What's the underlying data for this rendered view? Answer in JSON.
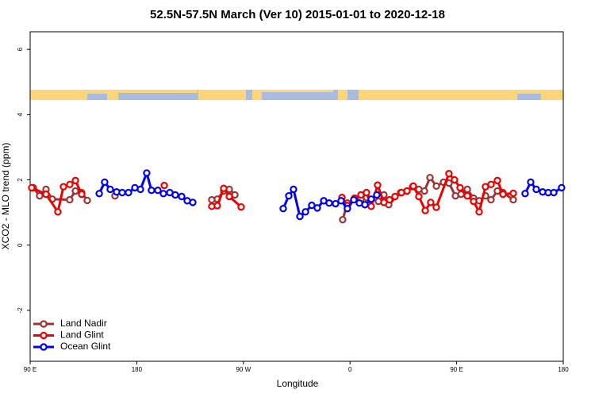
{
  "chart_data": {
    "type": "line",
    "title": "52.5N-57.5N March (Ver 10)   2015-01-01 to 2020-12-18",
    "xlabel": "Longitude",
    "ylabel": "XCO2 - MLO trend (ppm)",
    "xlim": [
      90,
      540
    ],
    "ylim": [
      -3.56,
      6.54
    ],
    "xticks": [
      {
        "value": 90,
        "label": "90 E"
      },
      180,
      {
        "value": 270,
        "label": "90 W"
      },
      {
        "value": 360,
        "label": "0"
      },
      {
        "value": 450,
        "label": "90 E"
      },
      {
        "value": 540,
        "label": "180"
      }
    ],
    "yticks": [
      -2,
      0,
      2,
      4,
      6
    ],
    "legend": "bottom-left",
    "series": [
      {
        "name": "Land Nadir",
        "color": "#9b3535",
        "x": [
          92.7,
          98,
          103.4,
          108.7,
          123.4,
          128.2,
          133.5,
          138.2,
          141,
          161.6,
          200,
          243.3,
          248,
          253.4,
          258.1,
          262.8,
          300,
          353.8,
          357.8,
          369.2,
          373.9,
          384,
          388.6,
          392.7,
          402.7,
          408.1,
          412.8,
          418.1,
          422.8,
          427.5,
          432.9,
          438.9,
          443.6,
          449,
          453.7,
          459,
          464.3,
          469,
          474.4,
          479,
          484.4,
          489.1,
          497.8
        ],
        "values": [
          1.76,
          1.51,
          1.71,
          1.41,
          1.39,
          1.66,
          1.61,
          1.37,
          null,
          1.51,
          null,
          1.39,
          1.41,
          1.66,
          1.71,
          1.54,
          null,
          0.78,
          1.29,
          1.41,
          1.46,
          1.34,
          1.54,
          1.24,
          1.61,
          1.66,
          1.79,
          1.71,
          1.66,
          2.07,
          1.81,
          1.93,
          1.9,
          1.51,
          1.56,
          1.71,
          1.44,
          1.36,
          1.51,
          1.39,
          1.66,
          1.61,
          1.39
        ]
      },
      {
        "name": "Land Glint",
        "color": "#ee0000",
        "x": [
          91.3,
          103.4,
          113.4,
          118.1,
          123.5,
          128.2,
          133.5,
          170,
          203.2,
          230,
          243.3,
          248,
          253.4,
          258.1,
          268.1,
          320,
          353.2,
          357.8,
          363.9,
          369.2,
          373.9,
          377.9,
          383.3,
          388.6,
          393.3,
          398,
          403.4,
          408.1,
          413.4,
          418.1,
          423.5,
          428.1,
          432.8,
          443.5,
          448.2,
          452.9,
          459,
          464.3,
          469,
          474.3,
          479,
          484.4,
          489.1,
          497.8
        ],
        "values": [
          1.76,
          1.56,
          1.02,
          1.79,
          1.86,
          1.98,
          1.56,
          null,
          1.83,
          null,
          1.19,
          1.21,
          1.74,
          1.49,
          1.17,
          null,
          1.46,
          1.21,
          1.44,
          1.54,
          1.61,
          1.19,
          1.84,
          1.31,
          1.39,
          1.49,
          1.61,
          1.66,
          1.81,
          1.49,
          1.06,
          1.31,
          1.16,
          2.19,
          2.0,
          1.76,
          1.51,
          1.34,
          1.02,
          1.79,
          1.86,
          1.98,
          1.56,
          1.59
        ]
      },
      {
        "name": "Ocean Glint",
        "color": "#0000ee",
        "x": [
          148.3,
          152.9,
          157.6,
          163,
          167.7,
          173,
          178.4,
          183.1,
          188.4,
          192.4,
          197.8,
          202.5,
          207.9,
          212.5,
          217.9,
          222.6,
          227.3,
          290,
          303.6,
          308.3,
          312.3,
          317.7,
          322.4,
          327.7,
          332.4,
          337.8,
          342.4,
          347.8,
          352.5,
          357.8,
          363.2,
          367.9,
          372.6,
          377.9,
          382.6,
          420,
          507.8,
          512.5,
          517.2,
          522.6,
          527.3,
          532,
          538.6
        ],
        "values": [
          1.58,
          1.93,
          1.71,
          1.63,
          1.61,
          1.61,
          1.76,
          1.71,
          2.21,
          1.68,
          1.68,
          1.58,
          1.61,
          1.54,
          1.49,
          1.36,
          1.31,
          null,
          1.12,
          1.51,
          1.71,
          0.88,
          1.02,
          1.22,
          1.14,
          1.36,
          1.29,
          1.27,
          1.36,
          1.12,
          1.39,
          1.29,
          1.24,
          1.41,
          1.54,
          null,
          1.58,
          1.93,
          1.71,
          1.63,
          1.61,
          1.61,
          1.76
        ]
      }
    ]
  }
}
